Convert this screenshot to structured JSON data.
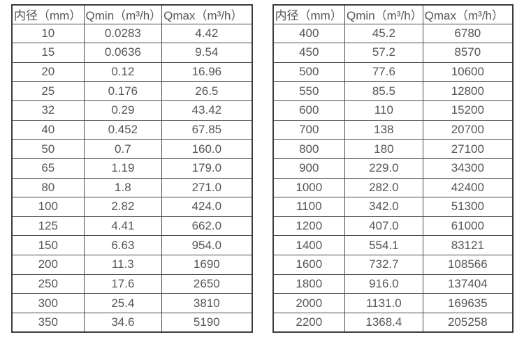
{
  "colors": {
    "background": "#ffffff",
    "border_outer": "#3c3c3c",
    "border_inner": "#4a4a4a",
    "text": "#565656"
  },
  "tables": [
    {
      "name": "flow-rate-table-small-diameters",
      "headers": [
        "内径（mm）",
        "Qmin（m³/h）",
        "Qmax（m³/h）"
      ],
      "rows": [
        [
          "10",
          "0.0283",
          "4.42"
        ],
        [
          "15",
          "0.0636",
          "9.54"
        ],
        [
          "20",
          "0.12",
          "16.96"
        ],
        [
          "25",
          "0.176",
          "26.5"
        ],
        [
          "32",
          "0.29",
          "43.42"
        ],
        [
          "40",
          "0.452",
          "67.85"
        ],
        [
          "50",
          "0.7",
          "160.0"
        ],
        [
          "65",
          "1.19",
          "179.0"
        ],
        [
          "80",
          "1.8",
          "271.0"
        ],
        [
          "100",
          "2.82",
          "424.0"
        ],
        [
          "125",
          "4.41",
          "662.0"
        ],
        [
          "150",
          "6.63",
          "954.0"
        ],
        [
          "200",
          "11.3",
          "1690"
        ],
        [
          "250",
          "17.6",
          "2650"
        ],
        [
          "300",
          "25.4",
          "3810"
        ],
        [
          "350",
          "34.6",
          "5190"
        ]
      ]
    },
    {
      "name": "flow-rate-table-large-diameters",
      "headers": [
        "内径（mm）",
        "Qmin（m³/h）",
        "Qmax（m³/h）"
      ],
      "rows": [
        [
          "400",
          "45.2",
          "6780"
        ],
        [
          "450",
          "57.2",
          "8570"
        ],
        [
          "500",
          "77.6",
          "10600"
        ],
        [
          "550",
          "85.5",
          "12800"
        ],
        [
          "600",
          "110",
          "15200"
        ],
        [
          "700",
          "138",
          "20700"
        ],
        [
          "800",
          "180",
          "27100"
        ],
        [
          "900",
          "229.0",
          "34300"
        ],
        [
          "1000",
          "282.0",
          "42400"
        ],
        [
          "1100",
          "342.0",
          "51300"
        ],
        [
          "1200",
          "407.0",
          "61000"
        ],
        [
          "1400",
          "554.1",
          "83121"
        ],
        [
          "1600",
          "732.7",
          "108566"
        ],
        [
          "1800",
          "916.0",
          "137404"
        ],
        [
          "2000",
          "1131.0",
          "169635"
        ],
        [
          "2200",
          "1368.4",
          "205258"
        ]
      ]
    }
  ]
}
